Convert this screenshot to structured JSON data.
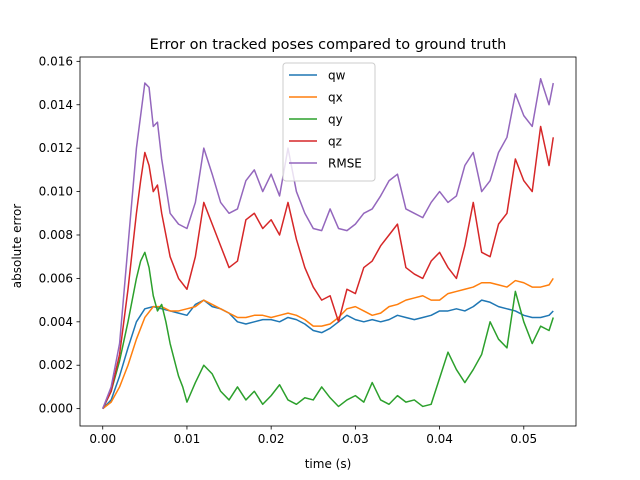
{
  "chart_data": {
    "type": "line",
    "title": "Error on tracked poses compared to ground truth",
    "xlabel": "time (s)",
    "ylabel": "absolute error",
    "xlim": [
      -0.0027,
      0.0562
    ],
    "ylim": [
      -0.0008,
      0.0162
    ],
    "xticks": [
      0.0,
      0.01,
      0.02,
      0.03,
      0.04,
      0.05
    ],
    "xtick_labels": [
      "0.00",
      "0.01",
      "0.02",
      "0.03",
      "0.04",
      "0.05"
    ],
    "yticks": [
      0.0,
      0.002,
      0.004,
      0.006,
      0.008,
      0.01,
      0.012,
      0.014,
      0.016
    ],
    "ytick_labels": [
      "0.000",
      "0.002",
      "0.004",
      "0.006",
      "0.008",
      "0.010",
      "0.012",
      "0.014",
      "0.016"
    ],
    "grid": false,
    "legend_position": "top-center",
    "series": [
      {
        "name": "qw",
        "color": "#1f77b4",
        "points": [
          [
            0.0,
            0.0
          ],
          [
            0.001,
            0.0004
          ],
          [
            0.002,
            0.0015
          ],
          [
            0.003,
            0.0028
          ],
          [
            0.004,
            0.004
          ],
          [
            0.005,
            0.0046
          ],
          [
            0.006,
            0.0047
          ],
          [
            0.007,
            0.0046
          ],
          [
            0.008,
            0.0045
          ],
          [
            0.009,
            0.0044
          ],
          [
            0.01,
            0.0043
          ],
          [
            0.011,
            0.0048
          ],
          [
            0.012,
            0.005
          ],
          [
            0.013,
            0.0047
          ],
          [
            0.014,
            0.0046
          ],
          [
            0.015,
            0.0044
          ],
          [
            0.016,
            0.004
          ],
          [
            0.017,
            0.0039
          ],
          [
            0.018,
            0.004
          ],
          [
            0.019,
            0.0041
          ],
          [
            0.02,
            0.0041
          ],
          [
            0.021,
            0.004
          ],
          [
            0.022,
            0.0042
          ],
          [
            0.023,
            0.0041
          ],
          [
            0.024,
            0.0039
          ],
          [
            0.025,
            0.0036
          ],
          [
            0.026,
            0.0035
          ],
          [
            0.027,
            0.0037
          ],
          [
            0.028,
            0.004
          ],
          [
            0.029,
            0.0043
          ],
          [
            0.03,
            0.0041
          ],
          [
            0.031,
            0.004
          ],
          [
            0.032,
            0.0041
          ],
          [
            0.033,
            0.004
          ],
          [
            0.034,
            0.0041
          ],
          [
            0.035,
            0.0043
          ],
          [
            0.036,
            0.0042
          ],
          [
            0.037,
            0.0041
          ],
          [
            0.038,
            0.0042
          ],
          [
            0.039,
            0.0043
          ],
          [
            0.04,
            0.0045
          ],
          [
            0.041,
            0.0045
          ],
          [
            0.042,
            0.0046
          ],
          [
            0.043,
            0.0045
          ],
          [
            0.044,
            0.0047
          ],
          [
            0.045,
            0.005
          ],
          [
            0.046,
            0.0049
          ],
          [
            0.047,
            0.0047
          ],
          [
            0.048,
            0.0046
          ],
          [
            0.049,
            0.0045
          ],
          [
            0.05,
            0.0043
          ],
          [
            0.051,
            0.0042
          ],
          [
            0.052,
            0.0042
          ],
          [
            0.053,
            0.0043
          ],
          [
            0.0535,
            0.0045
          ]
        ]
      },
      {
        "name": "qx",
        "color": "#ff7f0e",
        "points": [
          [
            0.0,
            0.0
          ],
          [
            0.001,
            0.0003
          ],
          [
            0.002,
            0.001
          ],
          [
            0.003,
            0.002
          ],
          [
            0.004,
            0.0032
          ],
          [
            0.005,
            0.0042
          ],
          [
            0.006,
            0.0047
          ],
          [
            0.007,
            0.0047
          ],
          [
            0.008,
            0.0045
          ],
          [
            0.009,
            0.0045
          ],
          [
            0.01,
            0.0046
          ],
          [
            0.011,
            0.0047
          ],
          [
            0.012,
            0.005
          ],
          [
            0.013,
            0.0048
          ],
          [
            0.014,
            0.0046
          ],
          [
            0.015,
            0.0044
          ],
          [
            0.016,
            0.0042
          ],
          [
            0.017,
            0.0042
          ],
          [
            0.018,
            0.0043
          ],
          [
            0.019,
            0.0043
          ],
          [
            0.02,
            0.0042
          ],
          [
            0.021,
            0.0043
          ],
          [
            0.022,
            0.0044
          ],
          [
            0.023,
            0.0043
          ],
          [
            0.024,
            0.0041
          ],
          [
            0.025,
            0.0038
          ],
          [
            0.026,
            0.0038
          ],
          [
            0.027,
            0.0039
          ],
          [
            0.028,
            0.0042
          ],
          [
            0.029,
            0.0046
          ],
          [
            0.03,
            0.0047
          ],
          [
            0.031,
            0.0045
          ],
          [
            0.032,
            0.0043
          ],
          [
            0.033,
            0.0044
          ],
          [
            0.034,
            0.0047
          ],
          [
            0.035,
            0.0048
          ],
          [
            0.036,
            0.005
          ],
          [
            0.037,
            0.0051
          ],
          [
            0.038,
            0.0052
          ],
          [
            0.039,
            0.005
          ],
          [
            0.04,
            0.005
          ],
          [
            0.041,
            0.0053
          ],
          [
            0.042,
            0.0054
          ],
          [
            0.043,
            0.0055
          ],
          [
            0.044,
            0.0056
          ],
          [
            0.045,
            0.0058
          ],
          [
            0.046,
            0.0058
          ],
          [
            0.047,
            0.0057
          ],
          [
            0.048,
            0.0056
          ],
          [
            0.049,
            0.0059
          ],
          [
            0.05,
            0.0058
          ],
          [
            0.051,
            0.0056
          ],
          [
            0.052,
            0.0056
          ],
          [
            0.053,
            0.0057
          ],
          [
            0.0535,
            0.006
          ]
        ]
      },
      {
        "name": "qy",
        "color": "#2ca02c",
        "points": [
          [
            0.0,
            0.0
          ],
          [
            0.001,
            0.0008
          ],
          [
            0.002,
            0.0022
          ],
          [
            0.003,
            0.004
          ],
          [
            0.004,
            0.006
          ],
          [
            0.0045,
            0.0068
          ],
          [
            0.005,
            0.0072
          ],
          [
            0.0055,
            0.0065
          ],
          [
            0.006,
            0.0052
          ],
          [
            0.0065,
            0.0045
          ],
          [
            0.007,
            0.0048
          ],
          [
            0.0075,
            0.004
          ],
          [
            0.008,
            0.003
          ],
          [
            0.009,
            0.0015
          ],
          [
            0.0095,
            0.001
          ],
          [
            0.01,
            0.0003
          ],
          [
            0.011,
            0.0012
          ],
          [
            0.012,
            0.002
          ],
          [
            0.013,
            0.0016
          ],
          [
            0.014,
            0.0008
          ],
          [
            0.015,
            0.0004
          ],
          [
            0.016,
            0.001
          ],
          [
            0.017,
            0.0004
          ],
          [
            0.018,
            0.0008
          ],
          [
            0.019,
            0.0002
          ],
          [
            0.02,
            0.0006
          ],
          [
            0.021,
            0.0011
          ],
          [
            0.022,
            0.0004
          ],
          [
            0.023,
            0.0002
          ],
          [
            0.024,
            0.0005
          ],
          [
            0.025,
            0.0004
          ],
          [
            0.026,
            0.001
          ],
          [
            0.027,
            0.0005
          ],
          [
            0.028,
            0.0001
          ],
          [
            0.029,
            0.0004
          ],
          [
            0.03,
            0.0006
          ],
          [
            0.031,
            0.0003
          ],
          [
            0.032,
            0.0012
          ],
          [
            0.033,
            0.0004
          ],
          [
            0.034,
            0.0002
          ],
          [
            0.035,
            0.0006
          ],
          [
            0.036,
            0.0003
          ],
          [
            0.037,
            0.0004
          ],
          [
            0.038,
            0.0001
          ],
          [
            0.039,
            0.0002
          ],
          [
            0.04,
            0.0014
          ],
          [
            0.041,
            0.0026
          ],
          [
            0.042,
            0.0018
          ],
          [
            0.043,
            0.0012
          ],
          [
            0.044,
            0.0018
          ],
          [
            0.045,
            0.0025
          ],
          [
            0.046,
            0.004
          ],
          [
            0.047,
            0.0032
          ],
          [
            0.048,
            0.0028
          ],
          [
            0.049,
            0.0054
          ],
          [
            0.05,
            0.004
          ],
          [
            0.051,
            0.003
          ],
          [
            0.052,
            0.0038
          ],
          [
            0.053,
            0.0036
          ],
          [
            0.0535,
            0.0042
          ]
        ]
      },
      {
        "name": "qz",
        "color": "#d62728",
        "points": [
          [
            0.0,
            0.0
          ],
          [
            0.001,
            0.0008
          ],
          [
            0.002,
            0.0025
          ],
          [
            0.003,
            0.0055
          ],
          [
            0.004,
            0.009
          ],
          [
            0.0045,
            0.0105
          ],
          [
            0.005,
            0.0118
          ],
          [
            0.0055,
            0.0112
          ],
          [
            0.006,
            0.01
          ],
          [
            0.0065,
            0.0103
          ],
          [
            0.007,
            0.009
          ],
          [
            0.008,
            0.007
          ],
          [
            0.009,
            0.006
          ],
          [
            0.01,
            0.0055
          ],
          [
            0.011,
            0.007
          ],
          [
            0.012,
            0.0095
          ],
          [
            0.013,
            0.0085
          ],
          [
            0.014,
            0.0075
          ],
          [
            0.015,
            0.0065
          ],
          [
            0.016,
            0.0068
          ],
          [
            0.017,
            0.0087
          ],
          [
            0.018,
            0.009
          ],
          [
            0.019,
            0.0083
          ],
          [
            0.02,
            0.0087
          ],
          [
            0.021,
            0.008
          ],
          [
            0.022,
            0.0095
          ],
          [
            0.023,
            0.0078
          ],
          [
            0.024,
            0.0065
          ],
          [
            0.025,
            0.0056
          ],
          [
            0.026,
            0.005
          ],
          [
            0.027,
            0.0052
          ],
          [
            0.028,
            0.004
          ],
          [
            0.029,
            0.0055
          ],
          [
            0.03,
            0.0053
          ],
          [
            0.031,
            0.0065
          ],
          [
            0.032,
            0.0068
          ],
          [
            0.033,
            0.0075
          ],
          [
            0.034,
            0.008
          ],
          [
            0.035,
            0.0085
          ],
          [
            0.036,
            0.0065
          ],
          [
            0.037,
            0.0062
          ],
          [
            0.038,
            0.006
          ],
          [
            0.039,
            0.0068
          ],
          [
            0.04,
            0.0072
          ],
          [
            0.041,
            0.0065
          ],
          [
            0.042,
            0.006
          ],
          [
            0.043,
            0.0075
          ],
          [
            0.044,
            0.0095
          ],
          [
            0.045,
            0.0072
          ],
          [
            0.046,
            0.007
          ],
          [
            0.047,
            0.0085
          ],
          [
            0.048,
            0.009
          ],
          [
            0.049,
            0.0115
          ],
          [
            0.05,
            0.0105
          ],
          [
            0.051,
            0.01
          ],
          [
            0.052,
            0.013
          ],
          [
            0.053,
            0.0112
          ],
          [
            0.0535,
            0.0125
          ]
        ]
      },
      {
        "name": "RMSE",
        "color": "#9467bd",
        "points": [
          [
            0.0,
            0.0
          ],
          [
            0.001,
            0.001
          ],
          [
            0.002,
            0.003
          ],
          [
            0.003,
            0.0075
          ],
          [
            0.004,
            0.012
          ],
          [
            0.0045,
            0.0135
          ],
          [
            0.005,
            0.015
          ],
          [
            0.0055,
            0.0148
          ],
          [
            0.006,
            0.013
          ],
          [
            0.0065,
            0.0132
          ],
          [
            0.007,
            0.0115
          ],
          [
            0.008,
            0.009
          ],
          [
            0.009,
            0.0085
          ],
          [
            0.01,
            0.0083
          ],
          [
            0.011,
            0.0095
          ],
          [
            0.012,
            0.012
          ],
          [
            0.013,
            0.0108
          ],
          [
            0.014,
            0.0095
          ],
          [
            0.015,
            0.009
          ],
          [
            0.016,
            0.0092
          ],
          [
            0.017,
            0.0105
          ],
          [
            0.018,
            0.011
          ],
          [
            0.019,
            0.01
          ],
          [
            0.02,
            0.0108
          ],
          [
            0.021,
            0.0098
          ],
          [
            0.022,
            0.012
          ],
          [
            0.023,
            0.01
          ],
          [
            0.024,
            0.009
          ],
          [
            0.025,
            0.0083
          ],
          [
            0.026,
            0.0082
          ],
          [
            0.027,
            0.0092
          ],
          [
            0.028,
            0.0083
          ],
          [
            0.029,
            0.0082
          ],
          [
            0.03,
            0.0085
          ],
          [
            0.031,
            0.009
          ],
          [
            0.032,
            0.0092
          ],
          [
            0.033,
            0.0098
          ],
          [
            0.034,
            0.0105
          ],
          [
            0.035,
            0.0108
          ],
          [
            0.036,
            0.0092
          ],
          [
            0.037,
            0.009
          ],
          [
            0.038,
            0.0088
          ],
          [
            0.039,
            0.0095
          ],
          [
            0.04,
            0.01
          ],
          [
            0.041,
            0.0095
          ],
          [
            0.042,
            0.0098
          ],
          [
            0.043,
            0.0112
          ],
          [
            0.044,
            0.0118
          ],
          [
            0.045,
            0.01
          ],
          [
            0.046,
            0.0105
          ],
          [
            0.047,
            0.0118
          ],
          [
            0.048,
            0.0125
          ],
          [
            0.049,
            0.0145
          ],
          [
            0.05,
            0.0135
          ],
          [
            0.051,
            0.013
          ],
          [
            0.052,
            0.0152
          ],
          [
            0.053,
            0.014
          ],
          [
            0.0535,
            0.015
          ]
        ]
      }
    ]
  }
}
